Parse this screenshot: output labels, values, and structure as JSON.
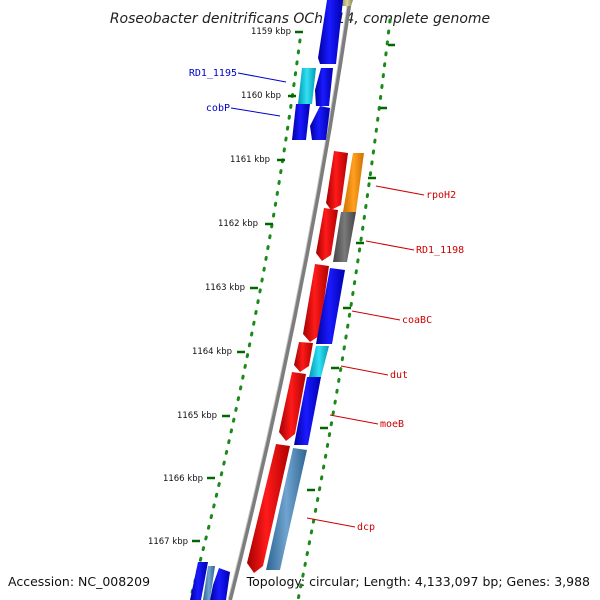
{
  "title": "Roseobacter denitrificans OCh 114, complete genome",
  "footer": {
    "accession": "Accession: NC_008209",
    "topology": "Topology: circular; Length: 4,133,097 bp; Genes: 3,988"
  },
  "ticks": [
    {
      "label": "1159 kbp"
    },
    {
      "label": "1160 kbp"
    },
    {
      "label": "1161 kbp"
    },
    {
      "label": "1162 kbp"
    },
    {
      "label": "1163 kbp"
    },
    {
      "label": "1164 kbp"
    },
    {
      "label": "1165 kbp"
    },
    {
      "label": "1166 kbp"
    },
    {
      "label": "1167 kbp"
    }
  ],
  "gene_labels": [
    {
      "text": "RD1_1195",
      "color": "#0000cc"
    },
    {
      "text": "cobP",
      "color": "#0000cc"
    },
    {
      "text": "rpoH2",
      "color": "#cc0000"
    },
    {
      "text": "RD1_1198",
      "color": "#cc0000"
    },
    {
      "text": "coaBC",
      "color": "#cc0000"
    },
    {
      "text": "dut",
      "color": "#cc0000"
    },
    {
      "text": "moeB",
      "color": "#cc0000"
    },
    {
      "text": "dcp",
      "color": "#cc0000"
    }
  ],
  "colors": {
    "forward_cds": "#ee0000",
    "reverse_cds": "#0000ee",
    "backbone": "#888888",
    "tick": "#006600",
    "orange_gene": "#ff8c00",
    "gray_gene": "#666666",
    "steelblue_gene": "#4682b4",
    "cyan_gene": "#00bfd8",
    "olive_gene": "#bdb76b"
  }
}
